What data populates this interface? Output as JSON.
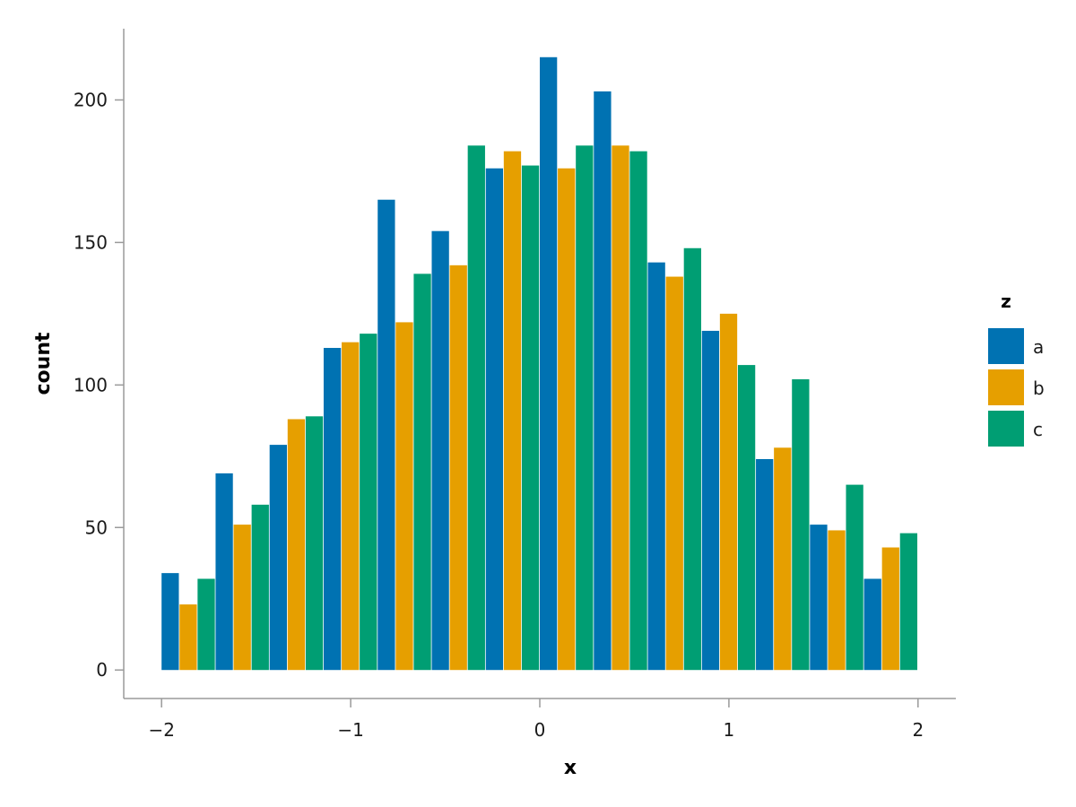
{
  "chart_data": {
    "type": "bar",
    "xlabel": "x",
    "ylabel": "count",
    "xlim": [
      -2.2,
      2.2
    ],
    "ylim": [
      -10,
      225
    ],
    "x_ticks": [
      -2,
      -1,
      0,
      1,
      2
    ],
    "x_tick_labels": [
      "−2",
      "−1",
      "0",
      "1",
      "2"
    ],
    "y_ticks": [
      0,
      50,
      100,
      150,
      200
    ],
    "y_tick_labels": [
      "0",
      "50",
      "100",
      "150",
      "200"
    ],
    "bin_edges": [
      -2.0,
      -1.7143,
      -1.4286,
      -1.1429,
      -0.8571,
      -0.5714,
      -0.2857,
      0.0,
      0.2857,
      0.5714,
      0.8571,
      1.1429,
      1.4286,
      1.7143,
      2.0
    ],
    "grid": false,
    "legend": {
      "title": "z",
      "placement": "right"
    },
    "series": [
      {
        "name": "a",
        "color": "#0072b2",
        "values": [
          34,
          69,
          79,
          113,
          165,
          154,
          176,
          215,
          203,
          143,
          119,
          74,
          51,
          32
        ]
      },
      {
        "name": "b",
        "color": "#e69f00",
        "values": [
          23,
          51,
          88,
          115,
          122,
          142,
          182,
          176,
          184,
          138,
          125,
          78,
          49,
          43
        ]
      },
      {
        "name": "c",
        "color": "#009e73",
        "values": [
          32,
          58,
          89,
          118,
          139,
          184,
          177,
          184,
          182,
          148,
          107,
          102,
          65,
          48
        ]
      }
    ]
  }
}
